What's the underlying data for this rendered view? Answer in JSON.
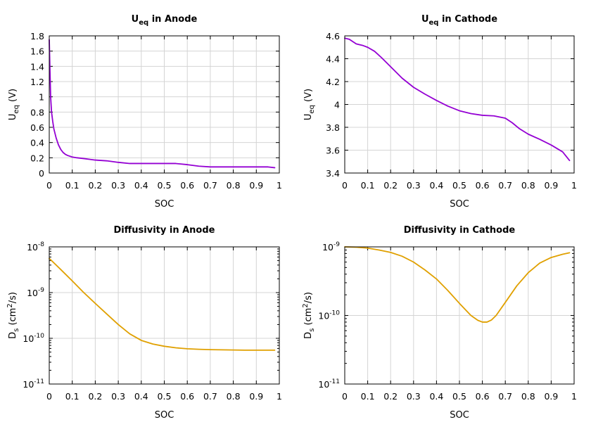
{
  "colors": {
    "ueq": "#9400d3",
    "diffusivity": "#e0a000"
  },
  "chart_data": [
    {
      "type": "line",
      "title_main": "U",
      "title_sub": "eq",
      "title_rest": " in Anode",
      "xlabel": "SOC",
      "ylabel_main": "U",
      "ylabel_sub": "eq",
      "ylabel_rest": " (V)",
      "xlim": [
        0,
        1
      ],
      "ylim": [
        0,
        1.8
      ],
      "yscale": "linear",
      "grid": true,
      "xticks": [
        0,
        0.1,
        0.2,
        0.3,
        0.4,
        0.5,
        0.6,
        0.7,
        0.8,
        0.9,
        1
      ],
      "xtick_labels": [
        "0",
        "0.1",
        "0.2",
        "0.3",
        "0.4",
        "0.5",
        "0.6",
        "0.7",
        "0.8",
        "0.9",
        "1"
      ],
      "yticks": [
        0,
        0.2,
        0.4,
        0.6,
        0.8,
        1,
        1.2,
        1.4,
        1.6,
        1.8
      ],
      "ytick_labels": [
        "0",
        "0.2",
        "0.4",
        "0.6",
        "0.8",
        "1",
        "1.2",
        "1.4",
        "1.6",
        "1.8"
      ],
      "series": [
        {
          "x": [
            0.0,
            0.003,
            0.006,
            0.01,
            0.015,
            0.02,
            0.03,
            0.04,
            0.05,
            0.06,
            0.07,
            0.08,
            0.1,
            0.12,
            0.15,
            0.2,
            0.25,
            0.3,
            0.35,
            0.4,
            0.45,
            0.5,
            0.55,
            0.6,
            0.65,
            0.7,
            0.75,
            0.8,
            0.85,
            0.9,
            0.95,
            0.98
          ],
          "y": [
            1.75,
            1.35,
            1.0,
            0.8,
            0.68,
            0.58,
            0.46,
            0.37,
            0.31,
            0.27,
            0.245,
            0.23,
            0.21,
            0.2,
            0.19,
            0.17,
            0.16,
            0.14,
            0.125,
            0.125,
            0.125,
            0.125,
            0.125,
            0.11,
            0.09,
            0.08,
            0.08,
            0.08,
            0.08,
            0.08,
            0.08,
            0.07
          ]
        }
      ]
    },
    {
      "type": "line",
      "title_main": "U",
      "title_sub": "eq",
      "title_rest": " in Cathode",
      "xlabel": "SOC",
      "ylabel_main": "U",
      "ylabel_sub": "eq",
      "ylabel_rest": " (V)",
      "xlim": [
        0,
        1
      ],
      "ylim": [
        3.4,
        4.6
      ],
      "yscale": "linear",
      "grid": true,
      "xticks": [
        0,
        0.1,
        0.2,
        0.3,
        0.4,
        0.5,
        0.6,
        0.7,
        0.8,
        0.9,
        1
      ],
      "xtick_labels": [
        "0",
        "0.1",
        "0.2",
        "0.3",
        "0.4",
        "0.5",
        "0.6",
        "0.7",
        "0.8",
        "0.9",
        "1"
      ],
      "yticks": [
        3.4,
        3.6,
        3.8,
        4.0,
        4.2,
        4.4,
        4.6
      ],
      "ytick_labels": [
        "3.4",
        "3.6",
        "3.8",
        "4",
        "4.2",
        "4.4",
        "4.6"
      ],
      "series": [
        {
          "x": [
            0.0,
            0.02,
            0.05,
            0.08,
            0.1,
            0.13,
            0.16,
            0.2,
            0.25,
            0.3,
            0.35,
            0.4,
            0.45,
            0.5,
            0.55,
            0.6,
            0.65,
            0.7,
            0.73,
            0.76,
            0.8,
            0.85,
            0.9,
            0.95,
            0.98
          ],
          "y": [
            4.58,
            4.57,
            4.53,
            4.515,
            4.5,
            4.465,
            4.41,
            4.33,
            4.23,
            4.15,
            4.09,
            4.035,
            3.985,
            3.945,
            3.92,
            3.905,
            3.9,
            3.88,
            3.84,
            3.79,
            3.74,
            3.695,
            3.645,
            3.585,
            3.51
          ]
        }
      ]
    },
    {
      "type": "line",
      "title_main": "Diffusivity in Anode",
      "xlabel": "SOC",
      "ylabel_main": "D",
      "ylabel_sub": "s",
      "ylabel_rest": " (cm",
      "ylabel_sup": "2",
      "ylabel_end": "/s)",
      "xlim": [
        0,
        1
      ],
      "ylim": [
        1e-11,
        1e-08
      ],
      "yscale": "log",
      "grid": true,
      "xticks": [
        0,
        0.1,
        0.2,
        0.3,
        0.4,
        0.5,
        0.6,
        0.7,
        0.8,
        0.9,
        1
      ],
      "xtick_labels": [
        "0",
        "0.1",
        "0.2",
        "0.3",
        "0.4",
        "0.5",
        "0.6",
        "0.7",
        "0.8",
        "0.9",
        "1"
      ],
      "yticks": [
        1e-11,
        1e-10,
        1e-09,
        1e-08
      ],
      "ytick_base": "10",
      "ytick_exponents": [
        "-11",
        "-10",
        "-9",
        "-8"
      ],
      "series": [
        {
          "x": [
            0.0,
            0.05,
            0.1,
            0.15,
            0.2,
            0.25,
            0.3,
            0.35,
            0.4,
            0.45,
            0.5,
            0.55,
            0.6,
            0.65,
            0.7,
            0.75,
            0.8,
            0.85,
            0.9,
            0.95,
            0.98
          ],
          "y": [
            5.6e-09,
            3.2e-09,
            1.8e-09,
            1e-09,
            5.8e-10,
            3.4e-10,
            2e-10,
            1.25e-10,
            9e-11,
            7.5e-11,
            6.7e-11,
            6.2e-11,
            5.9e-11,
            5.75e-11,
            5.65e-11,
            5.6e-11,
            5.55e-11,
            5.5e-11,
            5.5e-11,
            5.5e-11,
            5.5e-11
          ]
        }
      ]
    },
    {
      "type": "line",
      "title_main": "Diffusivity in Cathode",
      "xlabel": "SOC",
      "ylabel_main": "D",
      "ylabel_sub": "s",
      "ylabel_rest": " (cm",
      "ylabel_sup": "2",
      "ylabel_end": "/s)",
      "xlim": [
        0,
        1
      ],
      "ylim": [
        1e-11,
        1e-09
      ],
      "yscale": "log",
      "grid": true,
      "xticks": [
        0,
        0.1,
        0.2,
        0.3,
        0.4,
        0.5,
        0.6,
        0.7,
        0.8,
        0.9,
        1
      ],
      "xtick_labels": [
        "0",
        "0.1",
        "0.2",
        "0.3",
        "0.4",
        "0.5",
        "0.6",
        "0.7",
        "0.8",
        "0.9",
        "1"
      ],
      "yticks": [
        1e-11,
        1e-10,
        1e-09
      ],
      "ytick_base": "10",
      "ytick_exponents": [
        "-11",
        "-10",
        "-9"
      ],
      "series": [
        {
          "x": [
            0.0,
            0.05,
            0.1,
            0.15,
            0.2,
            0.25,
            0.3,
            0.35,
            0.4,
            0.45,
            0.5,
            0.55,
            0.58,
            0.6,
            0.62,
            0.64,
            0.66,
            0.7,
            0.75,
            0.8,
            0.85,
            0.9,
            0.95,
            0.98
          ],
          "y": [
            1e-09,
            9.9e-10,
            9.6e-10,
            9e-10,
            8.3e-10,
            7.3e-10,
            6e-10,
            4.6e-10,
            3.4e-10,
            2.3e-10,
            1.5e-10,
            1e-10,
            8.5e-11,
            8e-11,
            8e-11,
            8.6e-11,
            1e-10,
            1.55e-10,
            2.7e-10,
            4.2e-10,
            5.8e-10,
            7e-10,
            7.8e-10,
            8.2e-10
          ]
        }
      ]
    }
  ]
}
